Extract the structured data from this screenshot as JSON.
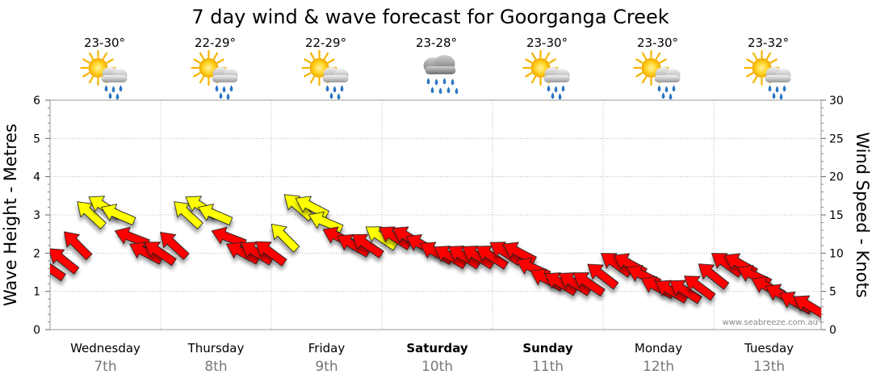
{
  "chart_data": {
    "type": "line",
    "title": "7 day wind & wave forecast for Goorganga Creek",
    "ylabel_left": "Wave Height - Metres",
    "ylabel_right": "Wind Speed - Knots",
    "ylim_left": [
      0,
      6
    ],
    "ylim_right": [
      0,
      30
    ],
    "yticks_left": [
      "0",
      "1",
      "2",
      "3",
      "4",
      "5",
      "6"
    ],
    "yticks_right": [
      "0",
      "5",
      "10",
      "15",
      "20",
      "25",
      "30"
    ],
    "grid": true,
    "days": [
      {
        "day": "Wednesday",
        "date": "7th",
        "temp": "23-30°",
        "icon": "sun-cloud-rain-icon",
        "bold": false
      },
      {
        "day": "Thursday",
        "date": "8th",
        "temp": "22-29°",
        "icon": "sun-cloud-rain-icon",
        "bold": false
      },
      {
        "day": "Friday",
        "date": "9th",
        "temp": "22-29°",
        "icon": "sun-cloud-rain-icon",
        "bold": false
      },
      {
        "day": "Saturday",
        "date": "10th",
        "temp": "23-28°",
        "icon": "rain-cloud-icon",
        "bold": true
      },
      {
        "day": "Sunday",
        "date": "11th",
        "temp": "23-30°",
        "icon": "sun-cloud-rain-icon",
        "bold": true
      },
      {
        "day": "Monday",
        "date": "12th",
        "temp": "23-30°",
        "icon": "sun-cloud-rain-icon",
        "bold": false
      },
      {
        "day": "Tuesday",
        "date": "13th",
        "temp": "23-32°",
        "icon": "sun-cloud-rain-icon",
        "bold": false
      }
    ],
    "series": [
      {
        "unit": "knots",
        "x_hours": [
          0,
          3,
          6,
          9,
          12,
          15,
          18,
          21,
          24,
          27,
          30,
          33,
          36,
          39,
          42,
          45,
          48,
          51,
          54,
          57,
          60,
          63,
          66,
          69,
          72,
          75,
          78,
          81,
          84,
          87,
          90,
          93,
          96,
          99,
          102,
          105,
          108,
          111,
          114,
          117,
          120,
          123,
          126,
          129,
          132,
          135,
          138,
          141,
          144,
          147,
          150,
          153,
          156,
          159,
          162,
          165
        ],
        "values": [
          8,
          9,
          11,
          15,
          16,
          15,
          12,
          10,
          10,
          11,
          15,
          16,
          15,
          12,
          10,
          10,
          10,
          12,
          16,
          16,
          14,
          12,
          11,
          11,
          12,
          12,
          12,
          11,
          10,
          9.5,
          9.5,
          9.5,
          9.5,
          10,
          10,
          8,
          6.5,
          6,
          6,
          6,
          7,
          8.5,
          8.5,
          7,
          5.5,
          5,
          5,
          5.5,
          7,
          8.5,
          8.5,
          7,
          5.5,
          4.5,
          3.5,
          3
        ],
        "colors": [
          "#ff0000",
          "#ff0000",
          "#ff0000",
          "#ffff00",
          "#ffff00",
          "#ffff00",
          "#ff0000",
          "#ff0000",
          "#ff0000",
          "#ff0000",
          "#ffff00",
          "#ffff00",
          "#ffff00",
          "#ff0000",
          "#ff0000",
          "#ff0000",
          "#ff0000",
          "#ffff00",
          "#ffff00",
          "#ffff00",
          "#ffff00",
          "#ff0000",
          "#ff0000",
          "#ff0000",
          "#ffff00",
          "#ff0000",
          "#ff0000",
          "#ff0000",
          "#ff0000",
          "#ff0000",
          "#ff0000",
          "#ff0000",
          "#ff0000",
          "#ff0000",
          "#ff0000",
          "#ff0000",
          "#ff0000",
          "#ff0000",
          "#ff0000",
          "#ff0000",
          "#ff0000",
          "#ff0000",
          "#ff0000",
          "#ff0000",
          "#ff0000",
          "#ff0000",
          "#ff0000",
          "#ff0000",
          "#ff0000",
          "#ff0000",
          "#ff0000",
          "#ff0000",
          "#ff0000",
          "#ff0000",
          "#ff0000",
          "#ff0000"
        ]
      }
    ],
    "credit": "www.seabreeze.com.au"
  }
}
